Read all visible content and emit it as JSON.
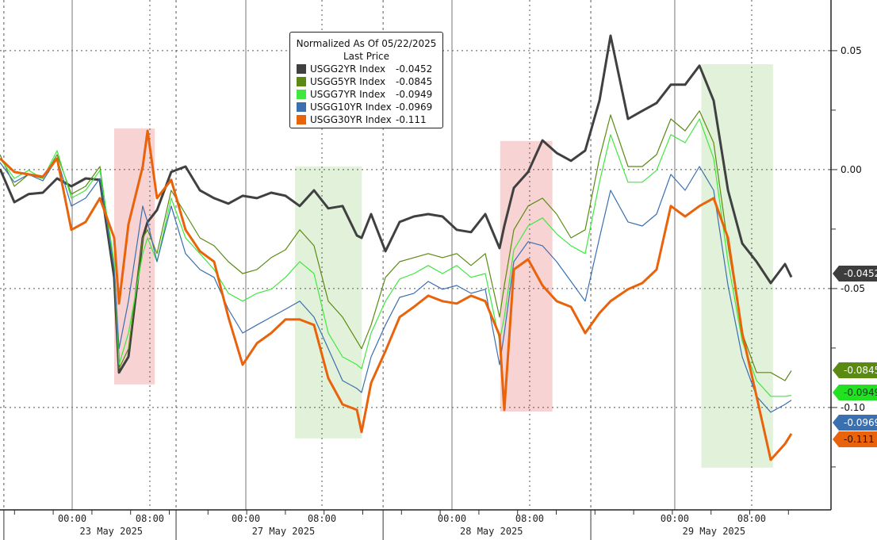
{
  "chart_data": {
    "type": "line",
    "title": "Normalized As Of 05/22/2025",
    "subtitle": "Last Price",
    "xlabel": "",
    "ylabel": "",
    "x_unit": "trading hours from chart start",
    "xlim": [
      0,
      85.9
    ],
    "ylim": [
      -0.1337,
      0.0713
    ],
    "grid": true,
    "legend_position": "top-center",
    "y_ticks": [
      {
        "value": 0.05,
        "label": "0.05"
      },
      {
        "value": 0.0,
        "label": "0.00"
      },
      {
        "value": -0.05,
        "label": "-0.05"
      },
      {
        "value": -0.1,
        "label": "-0.10"
      }
    ],
    "x_ticks": [
      {
        "t": 7.46,
        "label": "00:00",
        "major": true
      },
      {
        "t": 15.49,
        "label": "08:00",
        "major": false
      },
      {
        "t": 25.41,
        "label": "00:00",
        "major": true
      },
      {
        "t": 33.28,
        "label": "08:00",
        "major": false
      },
      {
        "t": 46.72,
        "label": "00:00",
        "major": true
      },
      {
        "t": 54.75,
        "label": "08:00",
        "major": false
      },
      {
        "t": 69.75,
        "label": "00:00",
        "major": true
      },
      {
        "t": 77.7,
        "label": "08:00",
        "major": false
      }
    ],
    "session_breaks": [
      0.4,
      18.2,
      39.6,
      61.07
    ],
    "date_labels": [
      {
        "t": 11.5,
        "label": "23 May 2025"
      },
      {
        "t": 29.3,
        "label": "27 May 2025"
      },
      {
        "t": 50.8,
        "label": "28 May 2025"
      },
      {
        "t": 73.8,
        "label": "29 May 2025"
      }
    ],
    "shaded_regions": [
      {
        "t0": 11.8,
        "t1": 16.0,
        "v0": 0.0173,
        "v1": -0.0903,
        "color": "#f7d3d3"
      },
      {
        "t0": 30.5,
        "t1": 37.4,
        "v0": 0.0013,
        "v1": -0.113,
        "color": "#e2f2da"
      },
      {
        "t0": 51.7,
        "t1": 57.1,
        "v0": 0.012,
        "v1": -0.1017,
        "color": "#f7d3d3"
      },
      {
        "t0": 72.5,
        "t1": 79.9,
        "v0": 0.0443,
        "v1": -0.1253,
        "color": "#e2f2da"
      }
    ],
    "x": [
      0,
      1.48,
      2.95,
      4.43,
      5.9,
      7.38,
      8.85,
      10.33,
      11.8,
      12.3,
      13.28,
      14.75,
      15.25,
      16.23,
      17.7,
      19.18,
      20.66,
      22.13,
      23.61,
      25.08,
      26.56,
      28.03,
      29.51,
      30.98,
      32.46,
      33.93,
      35.41,
      36.89,
      37.38,
      38.36,
      39.84,
      41.31,
      42.79,
      44.26,
      45.74,
      47.21,
      48.69,
      50.16,
      51.64,
      52.13,
      53.11,
      54.59,
      56.07,
      57.54,
      59.02,
      60.49,
      61.97,
      63.11,
      64.92,
      66.39,
      67.87,
      69.34,
      70.82,
      72.3,
      73.77,
      75.25,
      76.72,
      78.2,
      79.67,
      81.15,
      81.8
    ],
    "series": [
      {
        "name": "USGG2YR Index",
        "last": "-0.0452",
        "color": "#404040",
        "width": 3,
        "values": [
          0.0003,
          -0.0137,
          -0.0103,
          -0.0097,
          -0.0037,
          -0.007,
          -0.0037,
          -0.0043,
          -0.0453,
          -0.0853,
          -0.0787,
          -0.0287,
          -0.022,
          -0.017,
          -0.001,
          0.0013,
          -0.0087,
          -0.012,
          -0.0143,
          -0.011,
          -0.012,
          -0.0097,
          -0.011,
          -0.0153,
          -0.0087,
          -0.0163,
          -0.0153,
          -0.0277,
          -0.0287,
          -0.0187,
          -0.0343,
          -0.022,
          -0.0197,
          -0.0187,
          -0.0197,
          -0.0253,
          -0.0263,
          -0.0187,
          -0.033,
          -0.0237,
          -0.0077,
          -0.001,
          0.0123,
          0.007,
          0.0037,
          0.008,
          0.029,
          0.0563,
          0.0213,
          0.0247,
          0.028,
          0.0357,
          0.0357,
          0.0437,
          0.029,
          -0.0087,
          -0.031,
          -0.0387,
          -0.0477,
          -0.0397,
          -0.0452
        ]
      },
      {
        "name": "USGG5YR Index",
        "last": "-0.0845",
        "color": "#5b8a12",
        "width": 1.2,
        "values": [
          0.0063,
          -0.007,
          -0.002,
          -0.0037,
          0.0063,
          -0.0103,
          -0.007,
          0.0013,
          -0.042,
          -0.0837,
          -0.0753,
          -0.0287,
          -0.0253,
          -0.0353,
          -0.0087,
          -0.0187,
          -0.0287,
          -0.032,
          -0.0387,
          -0.0437,
          -0.042,
          -0.037,
          -0.0337,
          -0.0253,
          -0.032,
          -0.0553,
          -0.062,
          -0.072,
          -0.0753,
          -0.0653,
          -0.0453,
          -0.0387,
          -0.037,
          -0.0353,
          -0.037,
          -0.0353,
          -0.0403,
          -0.0353,
          -0.062,
          -0.0487,
          -0.0253,
          -0.0153,
          -0.012,
          -0.0187,
          -0.0287,
          -0.0253,
          0.0047,
          0.023,
          0.0013,
          0.0013,
          0.0063,
          0.0213,
          0.0163,
          0.0247,
          0.0113,
          -0.032,
          -0.0687,
          -0.0853,
          -0.0853,
          -0.0887,
          -0.0845
        ]
      },
      {
        "name": "USGG7YR Index",
        "last": "-0.0949",
        "color": "#3ee83e",
        "width": 1.2,
        "values": [
          0.0047,
          -0.0037,
          -0.0003,
          -0.0037,
          0.008,
          -0.012,
          -0.0087,
          -0.0003,
          -0.0387,
          -0.082,
          -0.0687,
          -0.0353,
          -0.0287,
          -0.0387,
          -0.012,
          -0.0287,
          -0.0353,
          -0.042,
          -0.052,
          -0.0553,
          -0.052,
          -0.0503,
          -0.0453,
          -0.0387,
          -0.0437,
          -0.0687,
          -0.0787,
          -0.082,
          -0.0837,
          -0.0687,
          -0.0553,
          -0.046,
          -0.0437,
          -0.0403,
          -0.0437,
          -0.0403,
          -0.0453,
          -0.0437,
          -0.072,
          -0.062,
          -0.0337,
          -0.0237,
          -0.0203,
          -0.027,
          -0.032,
          -0.0353,
          -0.0053,
          0.0147,
          -0.0053,
          -0.0053,
          -0.0003,
          0.0147,
          0.0113,
          0.0213,
          0.0047,
          -0.0387,
          -0.072,
          -0.0887,
          -0.0953,
          -0.0953,
          -0.0949
        ]
      },
      {
        "name": "USGG10YR Index",
        "last": "-0.0969",
        "color": "#3a6fb0",
        "width": 1.2,
        "values": [
          0.003,
          -0.0053,
          -0.002,
          -0.0047,
          0.0047,
          -0.0153,
          -0.012,
          -0.0037,
          -0.042,
          -0.0753,
          -0.0553,
          -0.0153,
          -0.022,
          -0.0387,
          -0.0153,
          -0.0353,
          -0.042,
          -0.0453,
          -0.0587,
          -0.0687,
          -0.0653,
          -0.062,
          -0.0587,
          -0.0553,
          -0.062,
          -0.0753,
          -0.0887,
          -0.092,
          -0.0937,
          -0.0787,
          -0.0653,
          -0.0537,
          -0.052,
          -0.047,
          -0.0503,
          -0.0487,
          -0.052,
          -0.0503,
          -0.082,
          -0.0687,
          -0.0387,
          -0.0303,
          -0.032,
          -0.0387,
          -0.047,
          -0.0553,
          -0.0287,
          -0.0087,
          -0.022,
          -0.0237,
          -0.0187,
          -0.002,
          -0.0087,
          0.0013,
          -0.0087,
          -0.0487,
          -0.0787,
          -0.0953,
          -0.102,
          -0.0987,
          -0.0969
        ]
      },
      {
        "name": "USGG30YR Index",
        "last": "-0.111",
        "color": "#e8630a",
        "width": 3,
        "values": [
          0.0047,
          -0.001,
          -0.002,
          -0.003,
          0.0047,
          -0.0253,
          -0.022,
          -0.012,
          -0.0287,
          -0.0563,
          -0.023,
          0.0013,
          0.0163,
          -0.012,
          -0.0043,
          -0.0253,
          -0.0343,
          -0.0387,
          -0.062,
          -0.082,
          -0.073,
          -0.0687,
          -0.063,
          -0.063,
          -0.0653,
          -0.0877,
          -0.0987,
          -0.101,
          -0.1103,
          -0.0897,
          -0.0763,
          -0.062,
          -0.0577,
          -0.053,
          -0.0553,
          -0.0563,
          -0.053,
          -0.0553,
          -0.0697,
          -0.101,
          -0.042,
          -0.0377,
          -0.0487,
          -0.0553,
          -0.0577,
          -0.0687,
          -0.0603,
          -0.0553,
          -0.0503,
          -0.0477,
          -0.042,
          -0.0153,
          -0.0197,
          -0.0153,
          -0.012,
          -0.0287,
          -0.0687,
          -0.0953,
          -0.122,
          -0.1153,
          -0.111
        ]
      }
    ]
  },
  "value_tags": [
    {
      "series": "USGG2YR Index",
      "label": "-0.0452",
      "value": -0.0452,
      "bg": "#3d3d3d",
      "fg": "#ffffff"
    },
    {
      "series": "USGG5YR Index",
      "label": "-0.0845",
      "value": -0.0845,
      "bg": "#5b8a12",
      "fg": "#ffffff"
    },
    {
      "series": "USGG10YR Index",
      "label": "-0.0969",
      "value": -0.0982,
      "bg": "#3a6fb0",
      "fg": "#ffffff"
    },
    {
      "series": "USGG7YR Index",
      "label": "-0.0949",
      "value": -0.0949,
      "bg": "#22e022",
      "fg": "#1a3a1a"
    },
    {
      "series": "USGG30YR Index",
      "label": "-0.111",
      "value": -0.111,
      "bg": "#e8630a",
      "fg": "#2a1000"
    }
  ]
}
